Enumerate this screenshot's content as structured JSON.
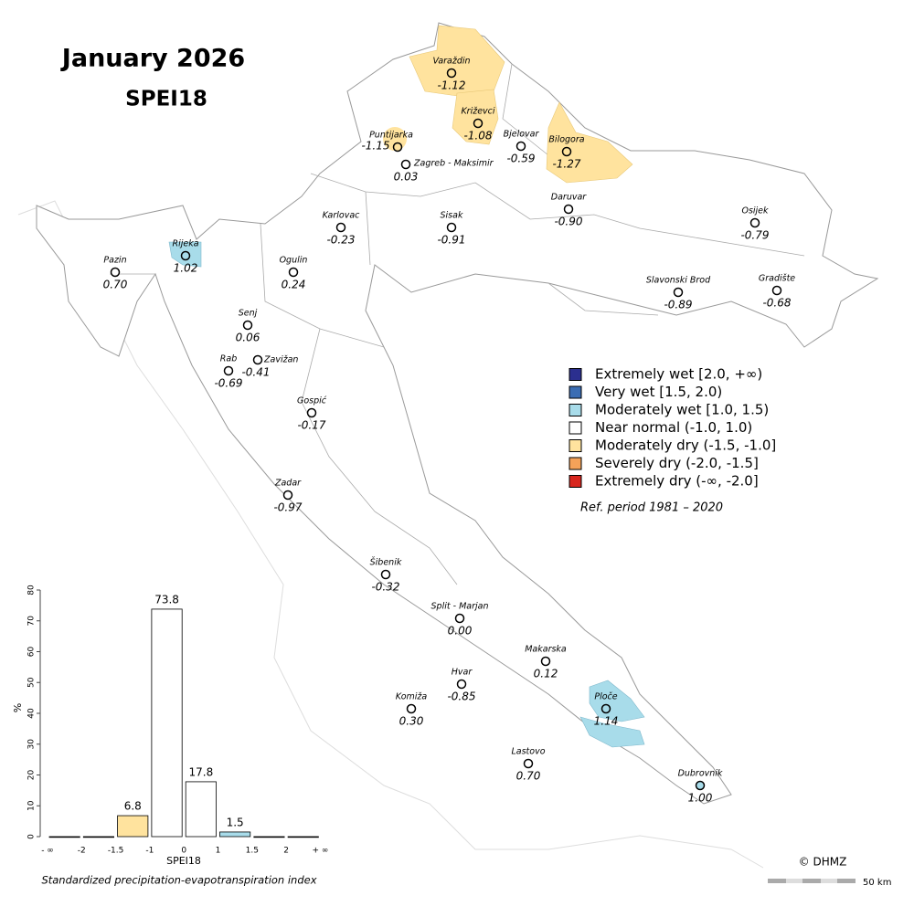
{
  "header": {
    "title": "January 2026",
    "subtitle": "SPEI18"
  },
  "stations": [
    {
      "name": "Varaždin",
      "value": "-1.12",
      "color": "#ffe39e"
    },
    {
      "name": "Križevci",
      "value": "-1.08",
      "color": "#ffe39e"
    },
    {
      "name": "Puntijarka",
      "value": "-1.15",
      "color": "#ffe39e"
    },
    {
      "name": "Zagreb - Maksimir",
      "value": "0.03",
      "color": "#ffffff"
    },
    {
      "name": "Bjelovar",
      "value": "-0.59",
      "color": "#ffffff"
    },
    {
      "name": "Bilogora",
      "value": "-1.27",
      "color": "#ffe39e"
    },
    {
      "name": "Daruvar",
      "value": "-0.90",
      "color": "#ffffff"
    },
    {
      "name": "Karlovac",
      "value": "-0.23",
      "color": "#ffffff"
    },
    {
      "name": "Sisak",
      "value": "-0.91",
      "color": "#ffffff"
    },
    {
      "name": "Osijek",
      "value": "-0.79",
      "color": "#ffffff"
    },
    {
      "name": "Pazin",
      "value": "0.70",
      "color": "#ffffff"
    },
    {
      "name": "Rijeka",
      "value": "1.02",
      "color": "#a8dcea"
    },
    {
      "name": "Ogulin",
      "value": "0.24",
      "color": "#ffffff"
    },
    {
      "name": "Slavonski Brod",
      "value": "-0.89",
      "color": "#ffffff"
    },
    {
      "name": "Gradište",
      "value": "-0.68",
      "color": "#ffffff"
    },
    {
      "name": "Senj",
      "value": "0.06",
      "color": "#ffffff"
    },
    {
      "name": "Zavižan",
      "value": "-0.41",
      "color": "#ffffff"
    },
    {
      "name": "Rab",
      "value": "-0.69",
      "color": "#ffffff"
    },
    {
      "name": "Gospić",
      "value": "-0.17",
      "color": "#ffffff"
    },
    {
      "name": "Zadar",
      "value": "-0.97",
      "color": "#ffffff"
    },
    {
      "name": "Šibenik",
      "value": "-0.32",
      "color": "#ffffff"
    },
    {
      "name": "Split - Marjan",
      "value": "0.00",
      "color": "#ffffff"
    },
    {
      "name": "Makarska",
      "value": "0.12",
      "color": "#ffffff"
    },
    {
      "name": "Hvar",
      "value": "-0.85",
      "color": "#ffffff"
    },
    {
      "name": "Komiža",
      "value": "0.30",
      "color": "#ffffff"
    },
    {
      "name": "Ploče",
      "value": "1.14",
      "color": "#a8dcea"
    },
    {
      "name": "Lastovo",
      "value": "0.70",
      "color": "#ffffff"
    },
    {
      "name": "Dubrovnik",
      "value": "1.00",
      "color": "#a8dcea"
    }
  ],
  "legend": [
    {
      "label": "Extremely wet [2.0, +∞)",
      "color": "#2b2f8f"
    },
    {
      "label": "Very wet [1.5, 2.0)",
      "color": "#3b6db3"
    },
    {
      "label": "Moderately wet [1.0, 1.5)",
      "color": "#a8dcea"
    },
    {
      "label": "Near normal (-1.0, 1.0)",
      "color": "#ffffff"
    },
    {
      "label": "Moderately dry (-1.5, -1.0]",
      "color": "#ffe39e"
    },
    {
      "label": "Severely dry (-2.0, -1.5]",
      "color": "#f4a259"
    },
    {
      "label": "Extremely dry (-∞, -2.0]",
      "color": "#d7261e"
    }
  ],
  "ref_period": "Ref. period 1981 – 2020",
  "credit": "© DHMZ",
  "scale_bar": "50 km",
  "chart_data": {
    "type": "bar",
    "bin_labels": [
      "- ∞",
      "-2",
      "-1.5",
      "-1",
      "0",
      "1",
      "1.5",
      "2",
      "+ ∞"
    ],
    "values": [
      0,
      0,
      6.8,
      73.8,
      17.8,
      1.5,
      0,
      0
    ],
    "value_labels": [
      null,
      null,
      "6.8",
      "73.8",
      "17.8",
      "1.5",
      null,
      null
    ],
    "colors": [
      "#ffffff",
      "#ffffff",
      "#ffe39e",
      "#ffffff",
      "#ffffff",
      "#a8dcea",
      "#ffffff",
      "#ffffff"
    ],
    "ylim": [
      0,
      80
    ],
    "yticks": [
      0,
      10,
      20,
      30,
      40,
      50,
      60,
      70,
      80
    ],
    "ylabel": "%",
    "xlabel": "SPEI18",
    "caption": "Standardized precipitation-evapotranspiration index"
  }
}
